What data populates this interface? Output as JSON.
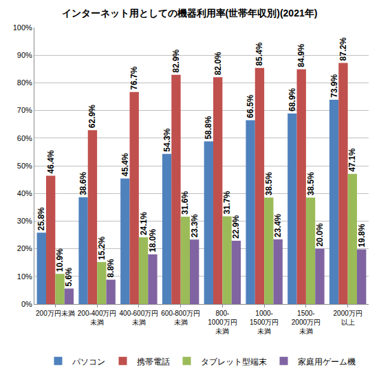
{
  "chart_data": {
    "type": "bar",
    "title": "インターネット用としての機器利用率(世帯年収別)(2021年)",
    "categories": [
      "200万円未満",
      "200-400万円\n未満",
      "400-600万円\n未満",
      "600-800万円\n未満",
      "800-\n1000万円\n未満",
      "1000-\n1500万円\n未満",
      "1500-\n2000万円\n未満",
      "2000万円\n以上"
    ],
    "series": [
      {
        "name": "パソコン",
        "color": "#4f81bd",
        "values": [
          25.8,
          38.6,
          45.4,
          54.3,
          58.8,
          66.5,
          68.9,
          73.9
        ],
        "value_labels": [
          "25.8%",
          "38.6%",
          "45.4%",
          "54.3%",
          "58.8%",
          "66.5%",
          "68.9%",
          "73.9%"
        ]
      },
      {
        "name": "携帯電話",
        "color": "#c0504d",
        "values": [
          46.4,
          62.9,
          76.7,
          82.9,
          82.0,
          85.4,
          84.9,
          87.2
        ],
        "value_labels": [
          "46.4%",
          "62.9%",
          "76.7%",
          "82.9%",
          "82.0%",
          "85.4%",
          "84.9%",
          "87.2%"
        ]
      },
      {
        "name": "タブレット型端末",
        "color": "#9bbb59",
        "values": [
          10.9,
          15.2,
          24.1,
          31.6,
          31.7,
          38.5,
          38.5,
          47.1
        ],
        "value_labels": [
          "10.9%",
          "15.2%",
          "24.1%",
          "31.6%",
          "31.7%",
          "38.5%",
          "38.5%",
          "47.1%"
        ]
      },
      {
        "name": "家庭用ゲーム機",
        "color": "#8064a2",
        "values": [
          5.6,
          8.8,
          18.0,
          23.3,
          22.9,
          23.4,
          20.0,
          19.8
        ],
        "value_labels": [
          "5.6%",
          "8.8%",
          "18.0%",
          "23.3%",
          "22.9%",
          "23.4%",
          "20.0%",
          "19.8%"
        ]
      }
    ],
    "ylim": [
      0,
      100
    ],
    "yticks": [
      {
        "value": 0,
        "label": "0%"
      },
      {
        "value": 10,
        "label": "10%"
      },
      {
        "value": 20,
        "label": "20%"
      },
      {
        "value": 30,
        "label": "30%"
      },
      {
        "value": 40,
        "label": "40%"
      },
      {
        "value": 50,
        "label": "50%"
      },
      {
        "value": 60,
        "label": "60%"
      },
      {
        "value": 70,
        "label": "70%"
      },
      {
        "value": 80,
        "label": "80%"
      },
      {
        "value": 90,
        "label": "90%"
      },
      {
        "value": 100,
        "label": "100%"
      }
    ],
    "grid": true,
    "legend": "bottom",
    "data_labels": true
  }
}
